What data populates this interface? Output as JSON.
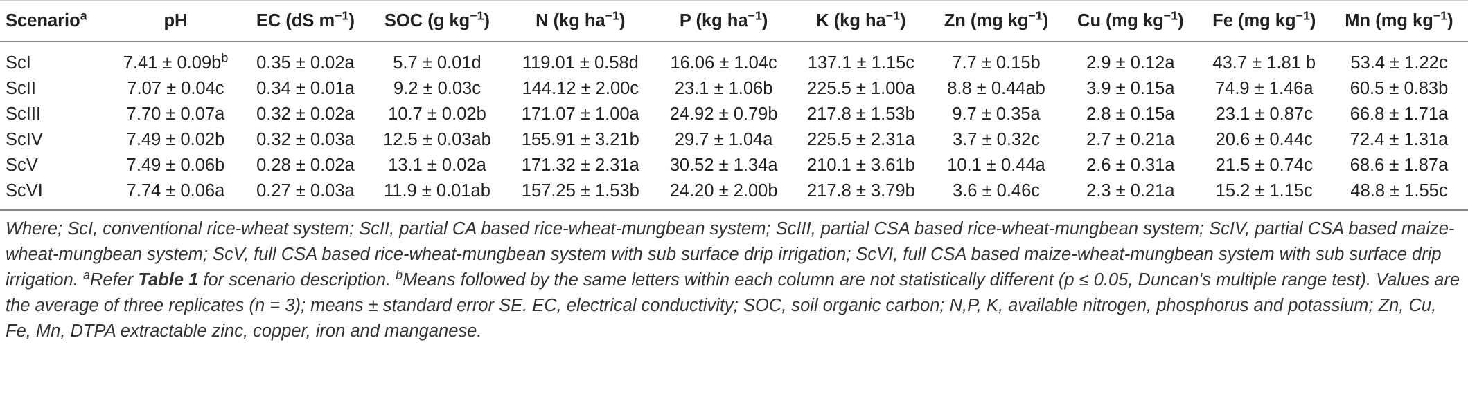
{
  "table": {
    "header": [
      [
        "Scenario",
        {
          "sup": "a"
        }
      ],
      [
        "pH"
      ],
      [
        "EC (dS m",
        {
          "sup": "−1"
        },
        ")"
      ],
      [
        "SOC (g kg",
        {
          "sup": "−1"
        },
        ")"
      ],
      [
        "N (kg ha",
        {
          "sup": "−1"
        },
        ")"
      ],
      [
        "P (kg ha",
        {
          "sup": "−1"
        },
        ")"
      ],
      [
        "K (kg ha",
        {
          "sup": "−1"
        },
        ")"
      ],
      [
        "Zn (mg kg",
        {
          "sup": "−1"
        },
        ")"
      ],
      [
        "Cu (mg kg",
        {
          "sup": "−1"
        },
        ")"
      ],
      [
        "Fe (mg kg",
        {
          "sup": "−1"
        },
        ")"
      ],
      [
        "Mn (mg kg",
        {
          "sup": "−1"
        },
        ")"
      ]
    ],
    "rows": [
      [
        [
          "ScI"
        ],
        [
          "7.41 ± 0.09b",
          {
            "sup": "b"
          }
        ],
        [
          "0.35 ± 0.02a"
        ],
        [
          "5.7 ± 0.01d"
        ],
        [
          "119.01 ± 0.58d"
        ],
        [
          "16.06 ± 1.04c"
        ],
        [
          "137.1 ± 1.15c"
        ],
        [
          "7.7 ± 0.15b"
        ],
        [
          "2.9 ± 0.12a"
        ],
        [
          "43.7 ± 1.81 b"
        ],
        [
          "53.4 ± 1.22c"
        ]
      ],
      [
        [
          "ScII"
        ],
        [
          "7.07 ± 0.04c"
        ],
        [
          "0.34 ± 0.01a"
        ],
        [
          "9.2 ± 0.03c"
        ],
        [
          "144.12 ± 2.00c"
        ],
        [
          "23.1 ± 1.06b"
        ],
        [
          "225.5 ± 1.00a"
        ],
        [
          "8.8 ± 0.44ab"
        ],
        [
          "3.9 ± 0.15a"
        ],
        [
          "74.9 ± 1.46a"
        ],
        [
          "60.5 ± 0.83b"
        ]
      ],
      [
        [
          "ScIII"
        ],
        [
          "7.70 ± 0.07a"
        ],
        [
          "0.32 ± 0.02a"
        ],
        [
          "10.7 ± 0.02b"
        ],
        [
          "171.07 ± 1.00a"
        ],
        [
          "24.92 ± 0.79b"
        ],
        [
          "217.8 ± 1.53b"
        ],
        [
          "9.7 ± 0.35a"
        ],
        [
          "2.8 ± 0.15a"
        ],
        [
          "23.1 ± 0.87c"
        ],
        [
          "66.8 ± 1.71a"
        ]
      ],
      [
        [
          "ScIV"
        ],
        [
          "7.49 ± 0.02b"
        ],
        [
          "0.32 ± 0.03a"
        ],
        [
          "12.5 ± 0.03ab"
        ],
        [
          "155.91 ± 3.21b"
        ],
        [
          "29.7 ± 1.04a"
        ],
        [
          "225.5 ± 2.31a"
        ],
        [
          "3.7 ± 0.32c"
        ],
        [
          "2.7 ± 0.21a"
        ],
        [
          "20.6 ± 0.44c"
        ],
        [
          "72.4 ± 1.31a"
        ]
      ],
      [
        [
          "ScV"
        ],
        [
          "7.49 ± 0.06b"
        ],
        [
          "0.28 ± 0.02a"
        ],
        [
          "13.1 ± 0.02a"
        ],
        [
          "171.32 ± 2.31a"
        ],
        [
          "30.52 ± 1.34a"
        ],
        [
          "210.1 ± 3.61b"
        ],
        [
          "10.1 ± 0.44a"
        ],
        [
          "2.6 ± 0.31a"
        ],
        [
          "21.5 ± 0.74c"
        ],
        [
          "68.6 ± 1.87a"
        ]
      ],
      [
        [
          "ScVI"
        ],
        [
          "7.74 ± 0.06a"
        ],
        [
          "0.27 ± 0.03a"
        ],
        [
          "11.9 ± 0.01ab"
        ],
        [
          "157.25 ± 1.53b"
        ],
        [
          "24.20 ± 2.00b"
        ],
        [
          "217.8 ± 3.79b"
        ],
        [
          "3.6 ± 0.46c"
        ],
        [
          "2.3 ± 0.21a"
        ],
        [
          "15.2 ± 1.15c"
        ],
        [
          "48.8 ± 1.55c"
        ]
      ]
    ]
  },
  "note": [
    "Where; ScI, conventional rice-wheat system; ScII, partial CA based rice-wheat-mungbean system; ScIII, partial CSA based rice-wheat-mungbean system; ScIV, partial CSA based maize-wheat-mungbean system; ScV, full CSA based rice-wheat-mungbean system with sub surface drip irrigation; ScVI, full CSA based maize-wheat-mungbean system with sub surface drip irrigation. ",
    {
      "sup": "a"
    },
    "Refer ",
    {
      "bold": "Table 1"
    },
    " for scenario description. ",
    {
      "sup": "b"
    },
    "Means followed by the same letters within each column are not statistically different (p ≤ 0.05, Duncan's multiple range test). Values are the average of three replicates (n = 3); means ± standard error SE. EC, electrical conductivity; SOC, soil organic carbon; N,P, K, available nitrogen, phosphorus and potassium; Zn, Cu, Fe, Mn, DTPA extractable zinc, copper, iron and manganese."
  ]
}
